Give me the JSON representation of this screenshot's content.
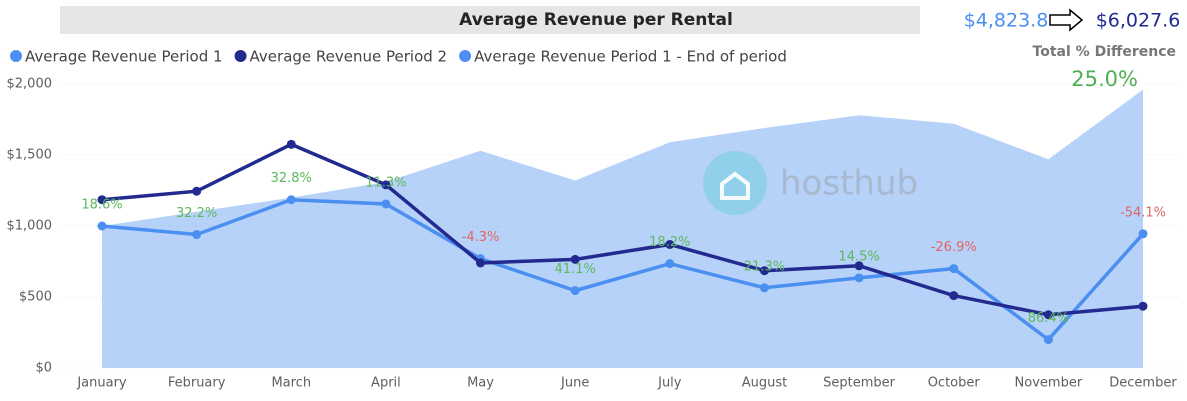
{
  "chart_data": {
    "type": "line",
    "title": "Average Revenue per Rental",
    "kpi": {
      "from": "$4,823.8",
      "to": "$6,027.6",
      "difference_title": "Total % Difference",
      "difference": "25.0%"
    },
    "watermark": "hosthub",
    "categories": [
      "January",
      "February",
      "March",
      "April",
      "May",
      "June",
      "July",
      "August",
      "September",
      "October",
      "November",
      "December"
    ],
    "series": [
      {
        "name": "Average Revenue Period 1",
        "color": "#4b8ff0",
        "values": [
          1000,
          940,
          1185,
          1155,
          770,
          545,
          735,
          565,
          635,
          700,
          200,
          945
        ]
      },
      {
        "name": "Average Revenue Period 2",
        "color": "#232a8f",
        "values": [
          1185,
          1245,
          1575,
          1290,
          740,
          765,
          870,
          685,
          720,
          510,
          375,
          435
        ]
      },
      {
        "name": "Average Revenue Period 1 - End of period",
        "color": "#4b8ff0",
        "area": true,
        "values": [
          1000,
          1100,
          1200,
          1310,
          1530,
          1320,
          1590,
          1690,
          1780,
          1720,
          1470,
          1960
        ]
      }
    ],
    "difference_labels": {
      "values": [
        18.6,
        32.2,
        32.8,
        11.3,
        -4.3,
        41.1,
        18.2,
        21.3,
        14.5,
        -26.9,
        86.4,
        -54.1
      ],
      "value_labels": [
        "18.6%",
        "32.2%",
        "32.8%",
        "11.3%",
        "-4.3%",
        "41.1%",
        "18.2%",
        "21.3%",
        "14.5%",
        "-26.9%",
        "86.4%",
        "-54.1%"
      ]
    },
    "ylim": [
      0,
      2000
    ],
    "yticks": [
      {
        "value": 0,
        "label": "$0"
      },
      {
        "value": 500,
        "label": "$500"
      },
      {
        "value": 1000,
        "label": "$1,000"
      },
      {
        "value": 1500,
        "label": "$1,500"
      },
      {
        "value": 2000,
        "label": "$2,000"
      }
    ],
    "grid": true
  }
}
